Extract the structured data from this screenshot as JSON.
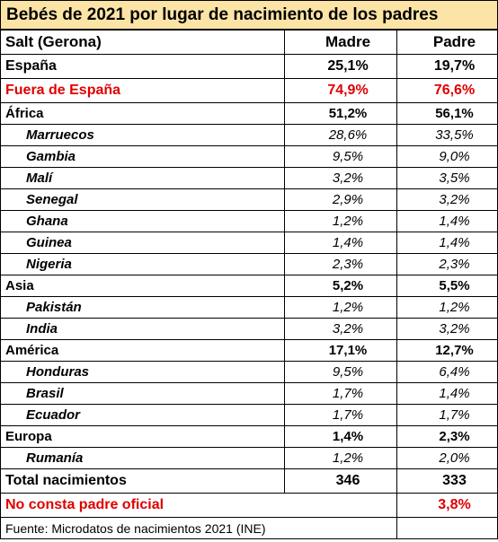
{
  "title": "Bebés de 2021 por lugar de nacimiento de los padres",
  "header": {
    "place": "Salt (Gerona)",
    "mother": "Madre",
    "father": "Padre"
  },
  "rows": [
    {
      "label": "España",
      "mother": "25,1%",
      "father": "19,7%",
      "kind": "big"
    },
    {
      "label": "Fuera de España",
      "mother": "74,9%",
      "father": "76,6%",
      "kind": "big-red"
    },
    {
      "label": "África",
      "mother": "51,2%",
      "father": "56,1%",
      "kind": "region"
    },
    {
      "label": "Marruecos",
      "mother": "28,6%",
      "father": "33,5%",
      "kind": "country"
    },
    {
      "label": "Gambia",
      "mother": "9,5%",
      "father": "9,0%",
      "kind": "country"
    },
    {
      "label": "Malí",
      "mother": "3,2%",
      "father": "3,5%",
      "kind": "country"
    },
    {
      "label": "Senegal",
      "mother": "2,9%",
      "father": "3,2%",
      "kind": "country"
    },
    {
      "label": "Ghana",
      "mother": "1,2%",
      "father": "1,4%",
      "kind": "country"
    },
    {
      "label": "Guinea",
      "mother": "1,4%",
      "father": "1,4%",
      "kind": "country"
    },
    {
      "label": "Nigeria",
      "mother": "2,3%",
      "father": "2,3%",
      "kind": "country"
    },
    {
      "label": "Asia",
      "mother": "5,2%",
      "father": "5,5%",
      "kind": "region"
    },
    {
      "label": "Pakistán",
      "mother": "1,2%",
      "father": "1,2%",
      "kind": "country"
    },
    {
      "label": "India",
      "mother": "3,2%",
      "father": "3,2%",
      "kind": "country"
    },
    {
      "label": "América",
      "mother": "17,1%",
      "father": "12,7%",
      "kind": "region"
    },
    {
      "label": "Honduras",
      "mother": "9,5%",
      "father": "6,4%",
      "kind": "country"
    },
    {
      "label": "Brasil",
      "mother": "1,7%",
      "father": "1,4%",
      "kind": "country"
    },
    {
      "label": "Ecuador",
      "mother": "1,7%",
      "father": "1,7%",
      "kind": "country"
    },
    {
      "label": "Europa",
      "mother": "1,4%",
      "father": "2,3%",
      "kind": "region"
    },
    {
      "label": "Rumanía",
      "mother": "1,2%",
      "father": "2,0%",
      "kind": "country"
    }
  ],
  "total": {
    "label": "Total nacimientos",
    "mother": "346",
    "father": "333"
  },
  "no_father": {
    "label": "No consta padre oficial",
    "father": "3,8%"
  },
  "source": "Fuente: Microdatos de nacimientos 2021 (INE)",
  "colors": {
    "title_bg": "#fce4a6",
    "red": "#e00000",
    "border": "#000000"
  }
}
